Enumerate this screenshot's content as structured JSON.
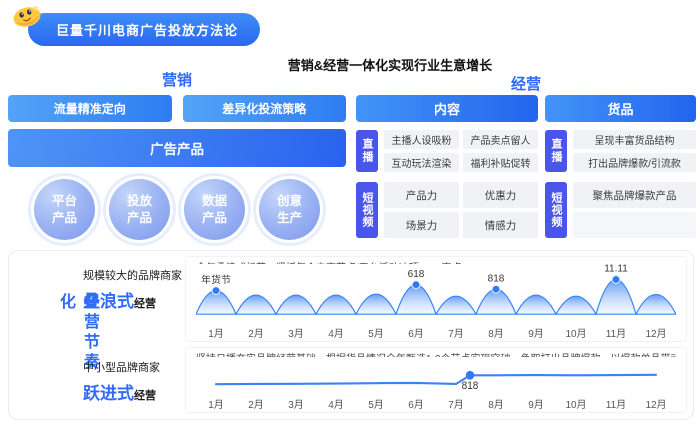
{
  "badge": {
    "icon": "emoji-face-icon",
    "title": "巨量千川电商广告投放方法论"
  },
  "main_title": "营销&经营一体化实现行业生意增长",
  "marketing": {
    "label": "营销",
    "buttons": [
      "流量精准定向",
      "差异化投流策略"
    ],
    "banner": "广告产品",
    "circles": [
      {
        "line1": "平台",
        "line2": "产品"
      },
      {
        "line1": "投放",
        "line2": "产品"
      },
      {
        "line1": "数据",
        "line2": "产品"
      },
      {
        "line1": "创意",
        "line2": "生产"
      }
    ]
  },
  "operation": {
    "label": "经营",
    "content": {
      "header": "内容",
      "live_tag": "直播",
      "live_items": [
        "主播人设吸粉",
        "产品卖点留人",
        "互动玩法渲染",
        "福利补贴促转"
      ],
      "video_tag": "短视频",
      "video_items": [
        "产品力",
        "优惠力",
        "场景力",
        "情感力"
      ]
    },
    "goods": {
      "header": "货品",
      "live_tag": "直播",
      "live_items": [
        "呈现丰富货品结构",
        "打出品牌爆款/引流款"
      ],
      "video_tag": "短视频",
      "video_items": [
        "聚焦品牌爆款产品"
      ]
    }
  },
  "rhythm": {
    "side_label": "经营节奏化",
    "rows": [
      {
        "merchant": "规模较大的品牌商家",
        "mode": "叠浪式",
        "suffix": "经营"
      },
      {
        "merchant": "中小型品牌商家",
        "mode": "跃进式",
        "suffix": "经营"
      }
    ]
  },
  "chart_data": [
    {
      "type": "area",
      "title": "全年叠浪式经营，紧抓每个电商节点/平台活动冲顶GMV高点",
      "categories": [
        "1月",
        "2月",
        "3月",
        "4月",
        "5月",
        "6月",
        "7月",
        "8月",
        "9月",
        "10月",
        "11月",
        "12月"
      ],
      "values": [
        68,
        55,
        55,
        55,
        58,
        85,
        52,
        72,
        55,
        52,
        100,
        57
      ],
      "annotations": [
        {
          "label": "年货节",
          "month": 1
        },
        {
          "label": "618",
          "month": 6
        },
        {
          "label": "818",
          "month": 8
        },
        {
          "label": "11.11",
          "month": 11
        }
      ],
      "xlabel": "",
      "ylabel": "",
      "grid": false,
      "legend": false
    },
    {
      "type": "line",
      "title": "坚持日播夯实品牌经营基础，根据货品情况全年甄选1-2个节点实现突破，争取打出品牌爆款，以爆款单品带动品牌起量",
      "categories": [
        "1月",
        "2月",
        "3月",
        "4月",
        "5月",
        "6月",
        "7月",
        "8月",
        "9月",
        "10月",
        "11月",
        "12月"
      ],
      "values": [
        16,
        17,
        18,
        19,
        21,
        22,
        17,
        56,
        57,
        56,
        57,
        58
      ],
      "annotations": [
        {
          "label": "818",
          "pos": 6.35,
          "value": 56
        }
      ],
      "xlabel": "",
      "ylabel": "",
      "grid": false,
      "legend": false
    }
  ],
  "colors": {
    "accent_blue": "#2F6BFB",
    "gradient_blue_light": "#4E95F6",
    "gradient_blue_dark": "#2A62EE",
    "tag_indigo": "#4A55EC",
    "chart_blue": "#3B82F6",
    "item_bg": "#F1F2F6",
    "badge_yellow": "#FFC83D"
  }
}
